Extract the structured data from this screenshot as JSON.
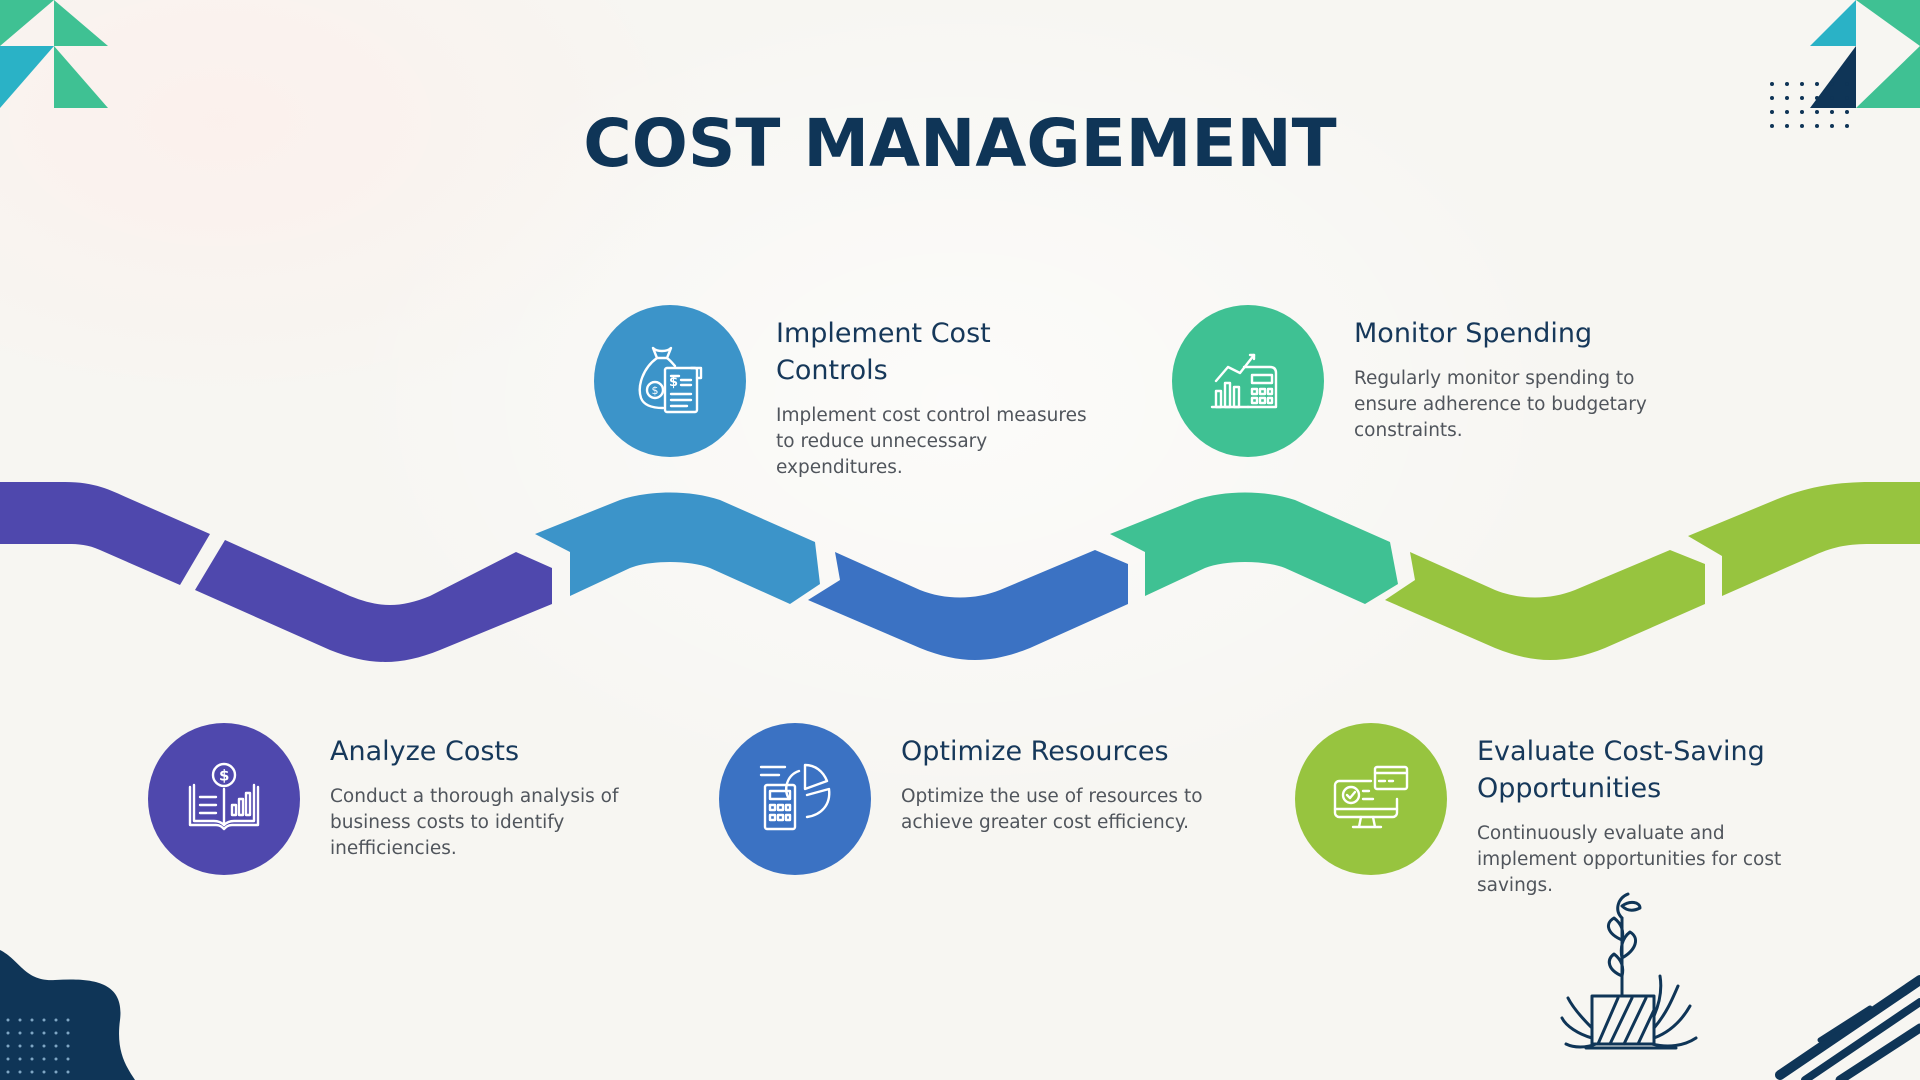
{
  "title": "COST MANAGEMENT",
  "colors": {
    "navy": "#0f3557",
    "purple": "#4f48ad",
    "sky_blue": "#3c94c9",
    "royal_blue": "#3b72c3",
    "teal": "#3fc193",
    "lime": "#97c43f"
  },
  "steps": [
    {
      "title": "Implement Cost Controls",
      "description": "Implement cost control measures to reduce unnecessary expenditures.",
      "icon": "money-bag-invoice-icon",
      "color": "#3c94c9"
    },
    {
      "title": "Monitor Spending",
      "description": "Regularly monitor spending to ensure adherence to budgetary constraints.",
      "icon": "chart-calculator-icon",
      "color": "#3fc193"
    },
    {
      "title": "Analyze Costs",
      "description": "Conduct a thorough analysis of business costs to identify inefficiencies.",
      "icon": "dollar-book-chart-icon",
      "color": "#4f48ad"
    },
    {
      "title": "Optimize Resources",
      "description": "Optimize the use of resources to achieve greater cost efficiency.",
      "icon": "calculator-pie-chart-icon",
      "color": "#3b72c3"
    },
    {
      "title": "Evaluate Cost-Saving Opportunities",
      "description": "Continuously evaluate and implement opportunities for cost savings.",
      "icon": "monitor-checkmark-card-icon",
      "color": "#97c43f"
    }
  ]
}
